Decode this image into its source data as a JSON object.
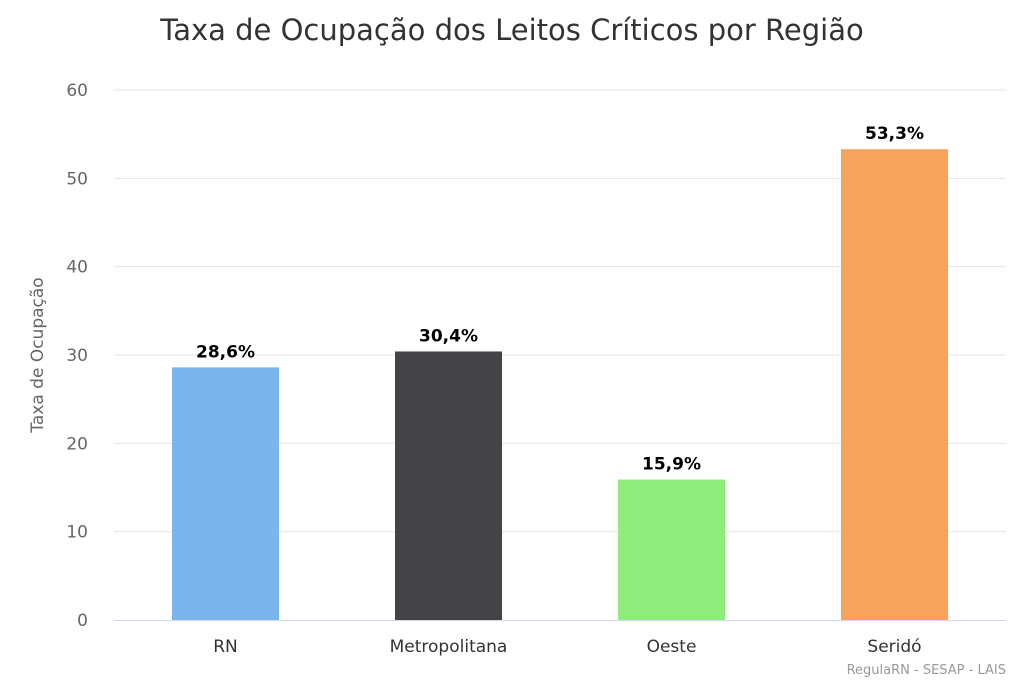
{
  "chart_data": {
    "type": "bar",
    "title": "Taxa de Ocupação dos Leitos Críticos por Região",
    "xlabel": "",
    "ylabel": "Taxa de Ocupação",
    "categories": [
      "RN",
      "Metropolitana",
      "Oeste",
      "Seridó"
    ],
    "values": [
      28.6,
      30.4,
      15.9,
      53.3
    ],
    "data_labels": [
      "28,6%",
      "30,4%",
      "15,9%",
      "53,3%"
    ],
    "colors": [
      "#7cb5ec",
      "#434348",
      "#90ed7d",
      "#f7a35c"
    ],
    "ylim": [
      0,
      60
    ],
    "yticks": [
      0,
      10,
      20,
      30,
      40,
      50,
      60
    ],
    "grid": true,
    "legend": "none"
  },
  "credits": "RegulaRN - SESAP - LAIS"
}
